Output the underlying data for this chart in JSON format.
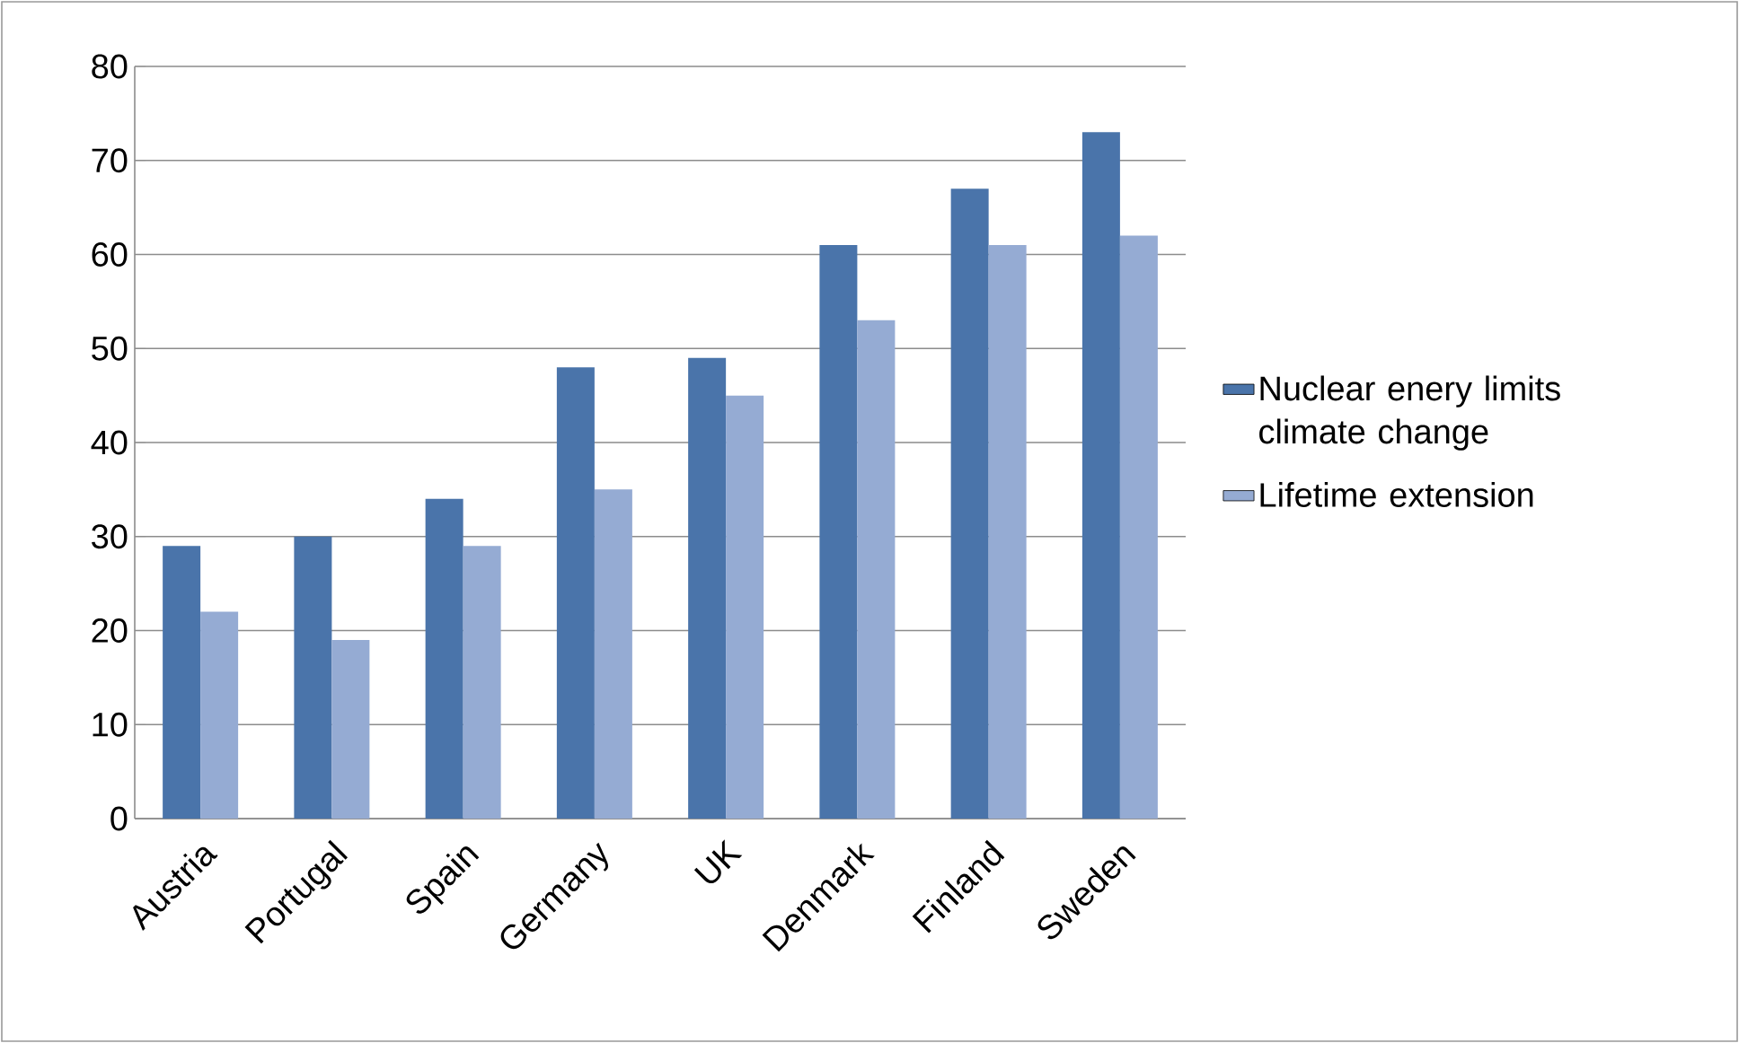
{
  "chart_data": {
    "type": "bar",
    "categories": [
      "Austria",
      "Portugal",
      "Spain",
      "Germany",
      "UK",
      "Denmark",
      "Finland",
      "Sweden"
    ],
    "series": [
      {
        "name": "Nuclear enery limits climate change",
        "color": "#4a74aa",
        "values": [
          29,
          30,
          34,
          48,
          49,
          61,
          67,
          73
        ]
      },
      {
        "name": "Lifetime extension",
        "color": "#95abd3",
        "values": [
          22,
          19,
          29,
          35,
          45,
          53,
          61,
          62
        ]
      }
    ],
    "ylim": [
      0,
      80
    ],
    "yticks": [
      0,
      10,
      20,
      30,
      40,
      50,
      60,
      70,
      80
    ],
    "grid": "y",
    "legend": "right"
  }
}
